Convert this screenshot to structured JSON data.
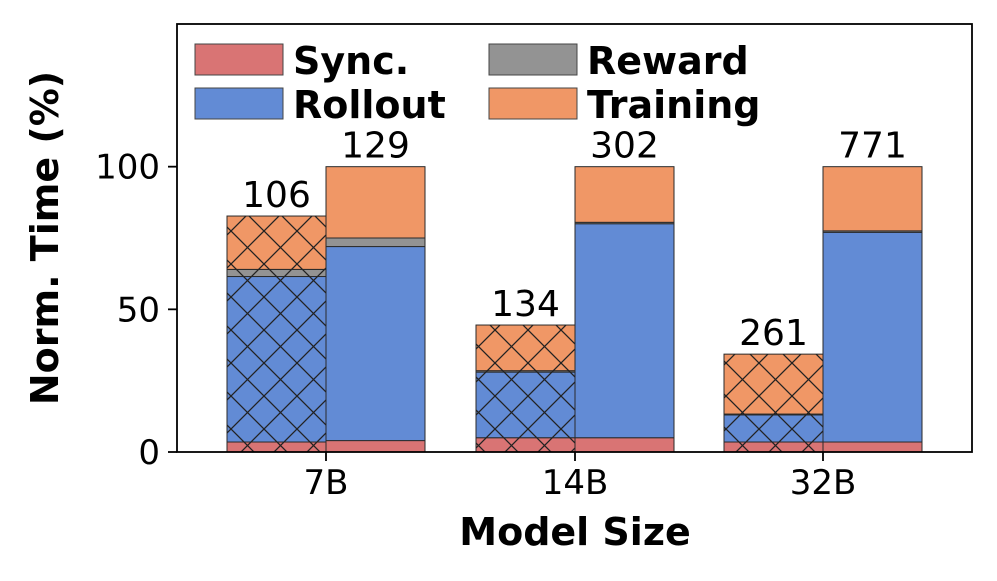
{
  "chart_data": {
    "type": "bar",
    "stacked": true,
    "title": "",
    "xlabel": "Model Size",
    "ylabel": "Norm. Time (%)",
    "categories": [
      "7B",
      "14B",
      "32B"
    ],
    "ylim": [
      0,
      150
    ],
    "yticks": [
      0,
      50,
      100
    ],
    "grid": false,
    "legend": {
      "placement": "top-left",
      "columns": 2,
      "entries": [
        "Sync.",
        "Reward",
        "Rollout",
        "Training"
      ]
    },
    "groups": [
      {
        "name": "hatched",
        "hatch": "crosshatch",
        "segments": {
          "Sync.": [
            3.5,
            5.0,
            3.5
          ],
          "Rollout": [
            58,
            23,
            9.5
          ],
          "Reward": [
            2.5,
            0.5,
            0.3
          ],
          "Training": [
            18.7,
            16,
            21
          ]
        },
        "labels": [
          "106",
          "134",
          "261"
        ]
      },
      {
        "name": "plain",
        "hatch": "none",
        "segments": {
          "Sync.": [
            4,
            5,
            3.5
          ],
          "Rollout": [
            68,
            75,
            73.5
          ],
          "Reward": [
            3,
            0.5,
            0.5
          ],
          "Training": [
            25,
            19.5,
            22.5
          ]
        },
        "labels": [
          "129",
          "302",
          "771"
        ]
      }
    ],
    "colors": {
      "Sync.": "#d97474",
      "Rollout": "#628bd5",
      "Reward": "#939393",
      "Training": "#f09766"
    }
  }
}
